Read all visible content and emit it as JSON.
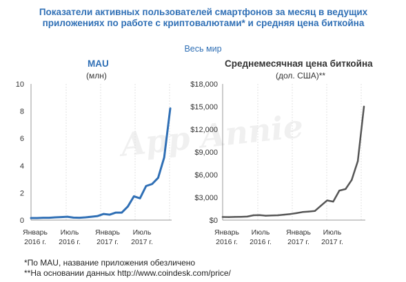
{
  "title": "Показатели активных пользователей смартфонов за месяц в ведущих приложениях по работе с криптовалютами* и средняя цена биткойна",
  "subtitle": "Весь мир",
  "watermark": "App Annie",
  "colors": {
    "title": "#2f6fb5",
    "mau_line": "#2f6fb5",
    "price_line": "#555555"
  },
  "chart_data": [
    {
      "type": "line",
      "title": "MAU",
      "unit": "(млн)",
      "ylim": [
        0,
        10
      ],
      "yticks": [
        "0",
        "2",
        "4",
        "6",
        "8",
        "10"
      ],
      "xtick_labels": [
        {
          "month": "Январь",
          "year": "2016 г."
        },
        {
          "month": "Июль",
          "year": "2016 г."
        },
        {
          "month": "Январь",
          "year": "2017 г."
        },
        {
          "month": "Июль",
          "year": "2017 г."
        }
      ],
      "grid": "vertical",
      "x": [
        "2016-01",
        "2016-02",
        "2016-03",
        "2016-04",
        "2016-05",
        "2016-06",
        "2016-07",
        "2016-08",
        "2016-09",
        "2016-10",
        "2016-11",
        "2016-12",
        "2017-01",
        "2017-02",
        "2017-03",
        "2017-04",
        "2017-05",
        "2017-06",
        "2017-07",
        "2017-08",
        "2017-09",
        "2017-10",
        "2017-11",
        "2017-12"
      ],
      "values": [
        0.15,
        0.15,
        0.17,
        0.17,
        0.2,
        0.22,
        0.25,
        0.18,
        0.17,
        0.2,
        0.25,
        0.3,
        0.45,
        0.4,
        0.55,
        0.55,
        1.0,
        1.75,
        1.6,
        2.5,
        2.65,
        3.1,
        4.6,
        8.2
      ]
    },
    {
      "type": "line",
      "title": "Среднемесячная цена биткойна",
      "unit": "(дол. США)**",
      "ylim": [
        0,
        18000
      ],
      "yticks": [
        "$0",
        "$3,000",
        "$6,000",
        "$9,000",
        "$12,000",
        "$15,000",
        "$18,000"
      ],
      "xtick_labels": [
        {
          "month": "Январь",
          "year": "2016 г."
        },
        {
          "month": "Июль",
          "year": "2016 г."
        },
        {
          "month": "Январь",
          "year": "2017 г."
        },
        {
          "month": "Июль",
          "year": "2017 г."
        }
      ],
      "grid": "vertical",
      "x": [
        "2016-01",
        "2016-02",
        "2016-03",
        "2016-04",
        "2016-05",
        "2016-06",
        "2016-07",
        "2016-08",
        "2016-09",
        "2016-10",
        "2016-11",
        "2016-12",
        "2017-01",
        "2017-02",
        "2017-03",
        "2017-04",
        "2017-05",
        "2017-06",
        "2017-07",
        "2017-08",
        "2017-09",
        "2017-10",
        "2017-11",
        "2017-12"
      ],
      "values": [
        410,
        400,
        415,
        435,
        460,
        640,
        660,
        580,
        605,
        640,
        720,
        800,
        920,
        1060,
        1130,
        1200,
        1900,
        2600,
        2450,
        3900,
        4100,
        5300,
        7800,
        15000
      ]
    }
  ],
  "footnotes": [
    "*По MAU, название приложения обезличено",
    "**На основании данных http://www.coindesk.com/price/"
  ]
}
